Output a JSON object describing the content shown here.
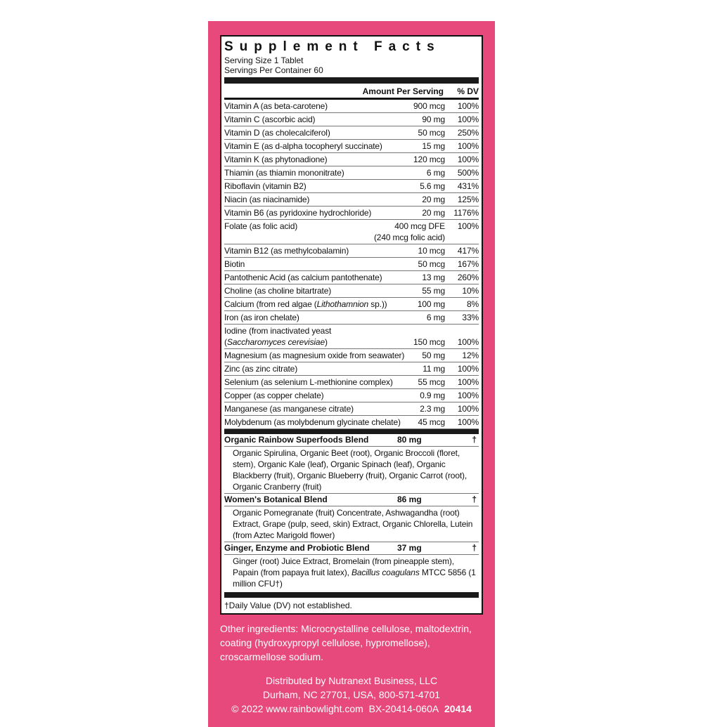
{
  "colors": {
    "panel": "#e8497c",
    "text": "#111111"
  },
  "facts": {
    "title": "Supplement Facts",
    "serving_size": "Serving Size 1 Tablet",
    "servings_per_container": "Servings Per Container 60",
    "header_amount": "Amount Per Serving",
    "header_dv": "% DV",
    "nutrients": [
      {
        "name": "Vitamin A (as beta-carotene)",
        "amount": "900 mcg",
        "dv": "100%"
      },
      {
        "name": "Vitamin C (ascorbic acid)",
        "amount": "90 mg",
        "dv": "100%"
      },
      {
        "name": "Vitamin D (as cholecalciferol)",
        "amount": "50 mcg",
        "dv": "250%"
      },
      {
        "name": "Vitamin E (as d-alpha tocopheryl succinate)",
        "amount": "15 mg",
        "dv": "100%"
      },
      {
        "name": "Vitamin K (as phytonadione)",
        "amount": "120 mcg",
        "dv": "100%"
      },
      {
        "name": "Thiamin (as thiamin mononitrate)",
        "amount": "6 mg",
        "dv": "500%"
      },
      {
        "name": "Riboflavin (vitamin B2)",
        "amount": "5.6 mg",
        "dv": "431%"
      },
      {
        "name": "Niacin (as niacinamide)",
        "amount": "20 mg",
        "dv": "125%"
      },
      {
        "name": "Vitamin B6 (as pyridoxine hydrochloride)",
        "amount": "20 mg",
        "dv": "1176%"
      },
      {
        "name": "Folate (as folic acid)",
        "amount": "400 mcg DFE",
        "amount_note": "(240 mcg folic acid)",
        "dv": "100%"
      },
      {
        "name": "Vitamin B12 (as methylcobalamin)",
        "amount": "10 mcg",
        "dv": "417%"
      },
      {
        "name": "Biotin",
        "amount": "50 mcg",
        "dv": "167%"
      },
      {
        "name": "Pantothenic Acid (as calcium pantothenate)",
        "amount": "13 mg",
        "dv": "260%"
      },
      {
        "name": "Choline (as choline bitartrate)",
        "amount": "55 mg",
        "dv": "10%"
      },
      {
        "name_pre": "Calcium (from red algae (",
        "name_italic": "Lithothamnion",
        "name_post": " sp.))",
        "amount": "100 mg",
        "dv": "8%"
      },
      {
        "name": "Iron (as iron chelate)",
        "amount": "6 mg",
        "dv": "33%"
      },
      {
        "name_pre": "Iodine (from inactivated yeast",
        "name_italic": "Saccharomyces cerevisiae",
        "name_post": ")",
        "amount": "150 mcg",
        "dv": "100%"
      },
      {
        "name": "Magnesium (as magnesium oxide from seawater)",
        "amount": "50 mg",
        "dv": "12%"
      },
      {
        "name": "Zinc (as zinc citrate)",
        "amount": "11 mg",
        "dv": "100%"
      },
      {
        "name": "Selenium (as selenium L-methionine complex)",
        "amount": "55 mcg",
        "dv": "100%"
      },
      {
        "name": "Copper (as copper chelate)",
        "amount": "0.9 mg",
        "dv": "100%"
      },
      {
        "name": "Manganese (as manganese citrate)",
        "amount": "2.3 mg",
        "dv": "100%"
      },
      {
        "name": "Molybdenum (as molybdenum glycinate chelate)",
        "amount": "45 mcg",
        "dv": "100%"
      }
    ],
    "blends": [
      {
        "name": "Organic Rainbow Superfoods Blend",
        "amount": "80 mg",
        "dv": "†",
        "desc": "Organic Spirulina, Organic Beet (root), Organic Broccoli (floret, stem), Organic Kale (leaf), Organic Spinach (leaf), Organic Blackberry (fruit), Organic Blueberry (fruit), Organic Carrot (root), Organic Cranberry (fruit)"
      },
      {
        "name": "Women's Botanical Blend",
        "amount": "86 mg",
        "dv": "†",
        "desc": "Organic Pomegranate (fruit) Concentrate, Ashwagandha (root) Extract, Grape (pulp, seed, skin) Extract, Organic Chlorella, Lutein (from Aztec Marigold flower)"
      },
      {
        "name": "Ginger, Enzyme and Probiotic Blend",
        "amount": "37 mg",
        "dv": "†",
        "desc_pre": "Ginger (root) Juice Extract, Bromelain (from pineapple stem), Papain (from papaya fruit latex), ",
        "desc_italic": "Bacillus coagulans",
        "desc_post": " MTCC 5856 (1 million CFU†)"
      }
    ],
    "footnote": "†Daily Value (DV) not established."
  },
  "other_ingredients": "Other ingredients: Microcrystalline cellulose, maltodextrin, coating (hydroxypropyl cellulose, hypromellose), croscarmellose sodium.",
  "distributor": {
    "line1": "Distributed by Nutranext Business, LLC",
    "line2": "Durham, NC 27701, USA, 800-571-4701",
    "line3": "© 2022 www.rainbowlight.com  BX-20414-060A",
    "code": "20414"
  }
}
